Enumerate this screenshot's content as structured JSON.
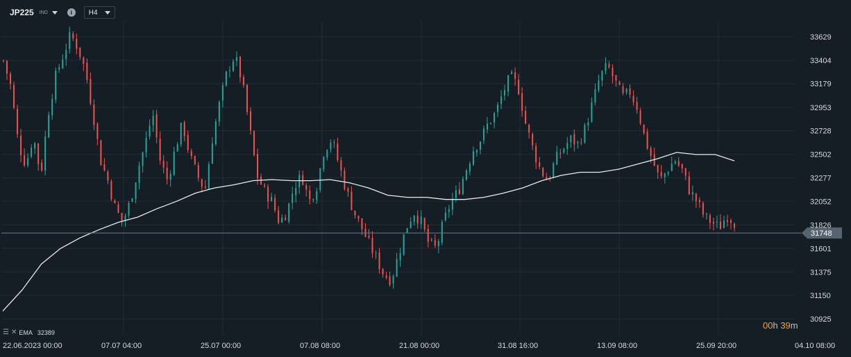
{
  "toolbar": {
    "symbol": "JP225",
    "symbol_sub": "IND",
    "timeframe": "H4"
  },
  "legend": {
    "indicator": "EMA",
    "value": "32389"
  },
  "countdown": {
    "hours": "00",
    "h_unit": "h",
    "minutes": "39",
    "m_unit": "m"
  },
  "colors": {
    "background": "#161e25",
    "up": "#26a69a",
    "down": "#ef5350",
    "ema": "#e8ecef",
    "grid": "#222c35",
    "price_line": "#6b7a86",
    "price_tag": "#56646f"
  },
  "chart_data": {
    "type": "line",
    "subtype": "candlestick",
    "y_ticks": [
      33629,
      33404,
      33179,
      32953,
      32728,
      32502,
      32277,
      32052,
      31826,
      31601,
      31375,
      31150,
      30925
    ],
    "ylim": [
      30900,
      33760
    ],
    "x_tick_labels": [
      "22.06.2023  00:00",
      "07.07  04:00",
      "25.07  00:00",
      "07.08  08:00",
      "21.08  00:00",
      "31.08  16:00",
      "13.09  08:00",
      "25.09  20:00",
      "04.10  08:00"
    ],
    "current_price": "31748",
    "close_path": [
      33400,
      33150,
      32600,
      32400,
      32680,
      32300,
      32900,
      33250,
      33450,
      33650,
      33520,
      33300,
      32900,
      32450,
      32250,
      31980,
      31850,
      32050,
      32350,
      32600,
      32900,
      32450,
      32250,
      32550,
      32800,
      32480,
      32300,
      32150,
      32650,
      33000,
      33300,
      33450,
      33200,
      32750,
      32300,
      32150,
      32050,
      31850,
      31950,
      32200,
      32300,
      32050,
      32200,
      32550,
      32650,
      32400,
      32150,
      31950,
      31800,
      31650,
      31500,
      31350,
      31300,
      31550,
      31800,
      31950,
      31850,
      31650,
      31600,
      31850,
      32050,
      32150,
      32350,
      32550,
      32650,
      32800,
      32900,
      33100,
      33250,
      33150,
      32800,
      32550,
      32350,
      32250,
      32450,
      32550,
      32650,
      32600,
      32750,
      33000,
      33250,
      33350,
      33200,
      33050,
      33100,
      32950,
      32650,
      32450,
      32250,
      32350,
      32450,
      32350,
      32150,
      32050,
      31900,
      31850,
      31800,
      31920,
      31850
    ],
    "ema_series": [
      {
        "name": "EMA",
        "values": [
          31000,
          31200,
          31450,
          31600,
          31700,
          31780,
          31850,
          31900,
          31980,
          32050,
          32130,
          32180,
          32210,
          32250,
          32260,
          32250,
          32250,
          32260,
          32230,
          32180,
          32110,
          32090,
          32090,
          32070,
          32070,
          32090,
          32130,
          32180,
          32250,
          32300,
          32330,
          32330,
          32360,
          32410,
          32460,
          32520,
          32500,
          32500,
          32440
        ]
      }
    ]
  }
}
